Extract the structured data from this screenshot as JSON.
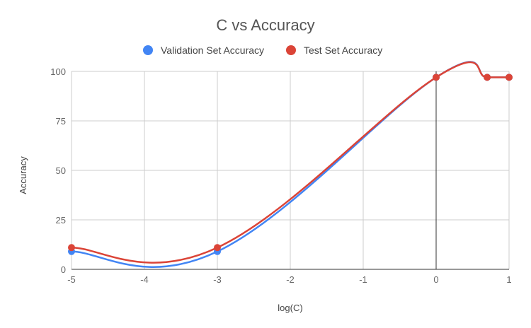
{
  "chart_data": {
    "type": "line",
    "title": "C vs Accuracy",
    "xlabel": "log(C)",
    "ylabel": "Accuracy",
    "xlim": [
      -5,
      1
    ],
    "ylim": [
      0,
      100
    ],
    "x_ticks": [
      "-5",
      "-4",
      "-3",
      "-2",
      "-1",
      "0",
      "1"
    ],
    "y_ticks": [
      "0",
      "25",
      "50",
      "75",
      "100"
    ],
    "grid": true,
    "legend_position": "top",
    "smooth": true,
    "series": [
      {
        "name": "Validation Set Accuracy",
        "color": "#4285f4",
        "points": [
          [
            -5,
            9
          ],
          [
            -3,
            9
          ],
          [
            0,
            97
          ],
          [
            0.7,
            97
          ],
          [
            1,
            97
          ]
        ]
      },
      {
        "name": "Test Set Accuracy",
        "color": "#db4437",
        "points": [
          [
            -5,
            11
          ],
          [
            -3,
            11
          ],
          [
            0,
            97
          ],
          [
            0.7,
            97
          ],
          [
            1,
            97
          ]
        ]
      }
    ]
  }
}
